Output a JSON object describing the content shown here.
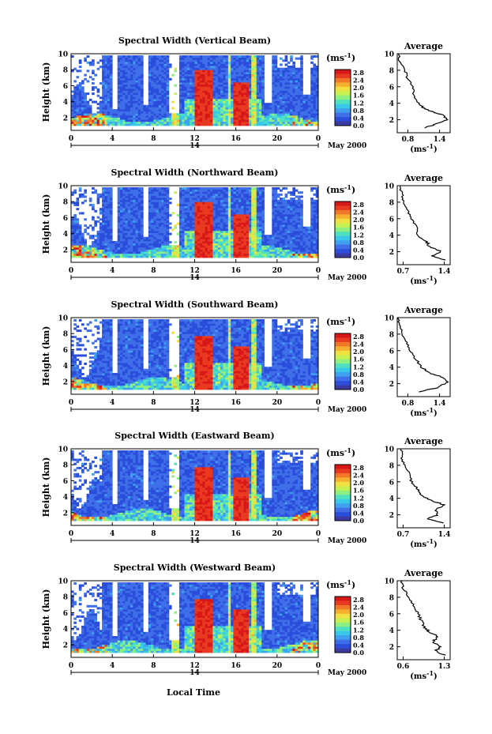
{
  "figure": {
    "x_axis_title": "Local Time",
    "date_prefix": "May 2000",
    "date_center_label": "14",
    "colorbar_unit_base": "(ms",
    "colorbar_unit_exp": "-1",
    "colorbar_unit_close": ")",
    "profile_title": "Average",
    "profile_unit_base": "(ms",
    "profile_unit_exp": "-1",
    "profile_unit_close": ")"
  },
  "colors": {
    "scale": [
      "#3a3aa0",
      "#2b4ddb",
      "#3f6fe8",
      "#3fa0f0",
      "#39c8e8",
      "#4fe0c0",
      "#8ef080",
      "#c8f050",
      "#f0e040",
      "#f5b030",
      "#f07828",
      "#e83a20",
      "#d81818"
    ]
  },
  "chart_data": [
    {
      "type": "heatmap",
      "title": "Spectral Width (Vertical Beam)",
      "xlabel": "",
      "ylabel": "Height (km)",
      "xlim": [
        0,
        24
      ],
      "ylim": [
        1,
        10
      ],
      "x_ticks": [
        "0",
        "4",
        "8",
        "12",
        "16",
        "20",
        "0"
      ],
      "y_ticks": [
        "2",
        "4",
        "6",
        "8",
        "10"
      ],
      "colorbar_ticks": [
        "0.0",
        "0.4",
        "0.8",
        "1.2",
        "1.6",
        "2.0",
        "2.4",
        "2.8"
      ],
      "profile": {
        "xlim": [
          0.6,
          1.6
        ],
        "x_ticks": [
          "0.8",
          "1.4"
        ],
        "y_ticks": [
          "2",
          "4",
          "6",
          "8",
          "10"
        ],
        "points": [
          [
            1.1,
            1.0
          ],
          [
            1.3,
            1.4
          ],
          [
            1.55,
            2.0
          ],
          [
            1.45,
            2.6
          ],
          [
            1.25,
            3.0
          ],
          [
            1.1,
            3.4
          ],
          [
            1.0,
            4.0
          ],
          [
            0.92,
            5.0
          ],
          [
            0.88,
            6.0
          ],
          [
            0.8,
            7.0
          ],
          [
            0.75,
            8.0
          ],
          [
            0.65,
            9.0
          ],
          [
            0.62,
            10.0
          ]
        ]
      }
    },
    {
      "type": "heatmap",
      "title": "Spectral Width (Northward Beam)",
      "xlabel": "",
      "ylabel": "Height (km)",
      "xlim": [
        0,
        24
      ],
      "ylim": [
        1,
        10
      ],
      "x_ticks": [
        "0",
        "4",
        "8",
        "12",
        "16",
        "20",
        "0"
      ],
      "y_ticks": [
        "2",
        "4",
        "6",
        "8",
        "10"
      ],
      "colorbar_ticks": [
        "0.0",
        "0.4",
        "0.8",
        "1.2",
        "1.6",
        "2.0",
        "2.4",
        "2.8"
      ],
      "profile": {
        "xlim": [
          0.6,
          1.5
        ],
        "x_ticks": [
          "0.7",
          "1.4"
        ],
        "y_ticks": [
          "2",
          "4",
          "6",
          "8",
          "10"
        ],
        "points": [
          [
            1.4,
            1.0
          ],
          [
            1.2,
            1.5
          ],
          [
            1.35,
            2.0
          ],
          [
            1.15,
            2.6
          ],
          [
            1.1,
            3.2
          ],
          [
            0.95,
            4.0
          ],
          [
            0.92,
            5.0
          ],
          [
            0.85,
            6.0
          ],
          [
            0.78,
            7.0
          ],
          [
            0.72,
            8.0
          ],
          [
            0.68,
            9.0
          ],
          [
            0.65,
            10.0
          ]
        ]
      }
    },
    {
      "type": "heatmap",
      "title": "Spectral Width (Southward Beam)",
      "xlabel": "",
      "ylabel": "Height (km)",
      "xlim": [
        0,
        24
      ],
      "ylim": [
        1,
        10
      ],
      "x_ticks": [
        "0",
        "4",
        "8",
        "12",
        "16",
        "20",
        "0"
      ],
      "y_ticks": [
        "2",
        "4",
        "6",
        "8",
        "10"
      ],
      "colorbar_ticks": [
        "0.0",
        "0.4",
        "0.8",
        "1.2",
        "1.6",
        "2.0",
        "2.4",
        "2.8"
      ],
      "profile": {
        "xlim": [
          0.6,
          1.6
        ],
        "x_ticks": [
          "0.8",
          "1.4"
        ],
        "y_ticks": [
          "2",
          "4",
          "6",
          "8",
          "10"
        ],
        "points": [
          [
            1.0,
            1.0
          ],
          [
            1.35,
            1.5
          ],
          [
            1.55,
            2.2
          ],
          [
            1.45,
            2.8
          ],
          [
            1.25,
            3.2
          ],
          [
            1.05,
            4.0
          ],
          [
            0.95,
            5.0
          ],
          [
            0.85,
            6.0
          ],
          [
            0.78,
            7.0
          ],
          [
            0.7,
            8.0
          ],
          [
            0.65,
            9.0
          ],
          [
            0.62,
            10.0
          ]
        ]
      }
    },
    {
      "type": "heatmap",
      "title": "Spectral Width (Eastward Beam)",
      "xlabel": "",
      "ylabel": "Height (km)",
      "xlim": [
        0,
        24
      ],
      "ylim": [
        1,
        10
      ],
      "x_ticks": [
        "0",
        "4",
        "8",
        "12",
        "16",
        "20",
        "0"
      ],
      "y_ticks": [
        "2",
        "4",
        "6",
        "8",
        "10"
      ],
      "colorbar_ticks": [
        "0.0",
        "0.4",
        "0.8",
        "1.2",
        "1.6",
        "2.0",
        "2.4",
        "2.8"
      ],
      "profile": {
        "xlim": [
          0.6,
          1.5
        ],
        "x_ticks": [
          "0.7",
          "1.4"
        ],
        "y_ticks": [
          "2",
          "4",
          "6",
          "8",
          "10"
        ],
        "points": [
          [
            1.4,
            1.0
          ],
          [
            1.1,
            1.5
          ],
          [
            1.3,
            2.0
          ],
          [
            1.25,
            2.6
          ],
          [
            1.4,
            3.2
          ],
          [
            1.15,
            3.8
          ],
          [
            1.0,
            4.4
          ],
          [
            0.95,
            5.0
          ],
          [
            0.85,
            6.0
          ],
          [
            0.8,
            7.0
          ],
          [
            0.72,
            8.0
          ],
          [
            0.68,
            9.0
          ],
          [
            0.66,
            10.0
          ]
        ]
      }
    },
    {
      "type": "heatmap",
      "title": "Spectral Width (Westward Beam)",
      "xlabel": "Local Time",
      "ylabel": "Height (km)",
      "xlim": [
        0,
        24
      ],
      "ylim": [
        1,
        10
      ],
      "x_ticks": [
        "0",
        "4",
        "8",
        "12",
        "16",
        "20",
        "0"
      ],
      "y_ticks": [
        "2",
        "4",
        "6",
        "8",
        "10"
      ],
      "colorbar_ticks": [
        "0.0",
        "0.4",
        "0.8",
        "1.2",
        "1.6",
        "2.0",
        "2.4",
        "2.8"
      ],
      "profile": {
        "xlim": [
          0.5,
          1.4
        ],
        "x_ticks": [
          "0.6",
          "1.3"
        ],
        "y_ticks": [
          "2",
          "4",
          "6",
          "8",
          "10"
        ],
        "points": [
          [
            1.3,
            1.0
          ],
          [
            1.15,
            1.5
          ],
          [
            1.25,
            2.0
          ],
          [
            1.1,
            2.6
          ],
          [
            1.2,
            3.2
          ],
          [
            1.05,
            3.8
          ],
          [
            0.95,
            4.4
          ],
          [
            0.92,
            5.0
          ],
          [
            0.85,
            6.0
          ],
          [
            0.78,
            7.0
          ],
          [
            0.7,
            8.0
          ],
          [
            0.6,
            9.0
          ],
          [
            0.58,
            10.0
          ]
        ]
      }
    }
  ]
}
